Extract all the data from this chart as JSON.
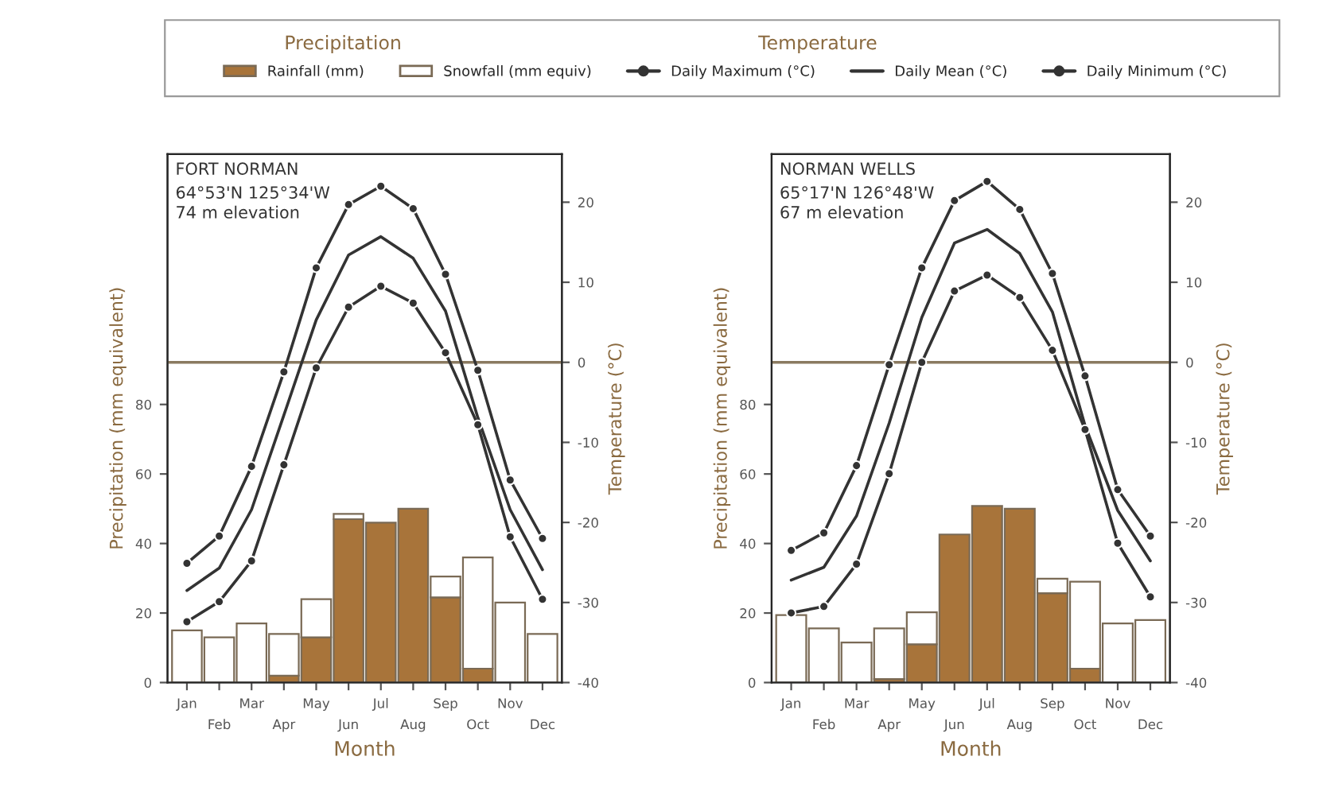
{
  "chart_data": [
    {
      "type": "bar",
      "title": "FORT NORMAN",
      "subtitle": "64°53'N 125°34'W\n74 m elevation",
      "xlabel": "Month",
      "ylabel": "Precipitation (mm equivalent)",
      "y2label": "Temperature (°C)",
      "annotations": [
        "Precipitation",
        "Temperature"
      ],
      "categories": [
        "Jan",
        "Feb",
        "Mar",
        "Apr",
        "May",
        "Jun",
        "Jul",
        "Aug",
        "Sep",
        "Oct",
        "Nov",
        "Dec"
      ],
      "stacked": true,
      "ylim": [
        0,
        152
      ],
      "yticks": [
        0,
        20,
        40,
        60,
        80
      ],
      "y2lim": [
        -40,
        26
      ],
      "y2ticks": [
        -40,
        -30,
        -20,
        -10,
        0,
        10,
        20
      ],
      "grid": false,
      "legend": "top",
      "ref_lines": [
        {
          "axis": "y2",
          "value": 0,
          "color": "#8a7a60"
        }
      ],
      "series": [
        {
          "name": "Rainfall (mm)",
          "color": "#a8743a",
          "values": [
            null,
            null,
            null,
            2,
            13,
            47,
            46,
            50,
            24.5,
            4,
            null,
            null
          ]
        },
        {
          "name": "Snowfall (mm equiv)",
          "color": "#ffffff",
          "values": [
            15,
            13,
            17,
            12,
            11,
            1.5,
            null,
            null,
            6,
            32,
            23,
            14
          ]
        },
        {
          "name": "Daily Maximum (°C)",
          "type": "line",
          "axis": "y2",
          "marker": "circle",
          "color": "#333333",
          "values": [
            -25.1,
            -21.7,
            -13,
            -1.2,
            11.8,
            19.7,
            22,
            19.2,
            11,
            -1,
            -14.7,
            -22
          ]
        },
        {
          "name": "Daily Mean (°C)",
          "type": "line",
          "axis": "y2",
          "marker": "none",
          "color": "#333333",
          "values": [
            -28.5,
            -25.7,
            -18.4,
            -6.6,
            5.3,
            13.4,
            15.7,
            13,
            6.4,
            -6.9,
            -18.4,
            -25.9
          ]
        },
        {
          "name": "Daily Minimum (°C)",
          "type": "line",
          "axis": "y2",
          "marker": "circle",
          "color": "#333333",
          "values": [
            -32.4,
            -29.9,
            -24.8,
            -12.8,
            -0.7,
            6.9,
            9.5,
            7.4,
            1.2,
            -7.8,
            -21.8,
            -29.6
          ]
        }
      ]
    },
    {
      "type": "bar",
      "title": "NORMAN WELLS",
      "subtitle": "65°17'N 126°48'W\n67 m elevation",
      "xlabel": "Month",
      "ylabel": "Precipitation (mm equivalent)",
      "y2label": "Temperature (°C)",
      "categories": [
        "Jan",
        "Feb",
        "Mar",
        "Apr",
        "May",
        "Jun",
        "Jul",
        "Aug",
        "Sep",
        "Oct",
        "Nov",
        "Dec"
      ],
      "stacked": true,
      "ylim": [
        0,
        152
      ],
      "yticks": [
        0,
        20,
        40,
        60,
        80
      ],
      "y2lim": [
        -40,
        26
      ],
      "y2ticks": [
        -40,
        -30,
        -20,
        -10,
        0,
        10,
        20
      ],
      "grid": false,
      "ref_lines": [
        {
          "axis": "y2",
          "value": 0,
          "color": "#8a7a60"
        }
      ],
      "series": [
        {
          "color": "#a8743a",
          "values": [
            null,
            null,
            null,
            1,
            11,
            42.6,
            50.8,
            50,
            25.7,
            4,
            null,
            null
          ]
        },
        {
          "color": "#ffffff",
          "values": [
            19.4,
            15.6,
            11.5,
            14.6,
            9.2,
            null,
            null,
            null,
            4.2,
            25,
            17,
            18
          ]
        },
        {
          "type": "line",
          "axis": "y2",
          "marker": "circle",
          "color": "#333333",
          "values": [
            -23.5,
            -21.3,
            -12.9,
            -0.3,
            11.8,
            20.2,
            22.6,
            19.1,
            11.1,
            -1.7,
            -15.9,
            -21.7
          ]
        },
        {
          "type": "line",
          "axis": "y2",
          "marker": "none",
          "color": "#333333",
          "values": [
            -27.2,
            -25.6,
            -19.2,
            -7.6,
            5.6,
            14.9,
            16.6,
            13.6,
            6.3,
            -7.9,
            -18.5,
            -24.8
          ]
        },
        {
          "type": "line",
          "axis": "y2",
          "marker": "circle",
          "color": "#333333",
          "values": [
            -31.3,
            -30.5,
            -25.2,
            -13.9,
            0,
            8.9,
            10.9,
            8.1,
            1.5,
            -8.4,
            -22.6,
            -29.3
          ]
        }
      ]
    }
  ]
}
